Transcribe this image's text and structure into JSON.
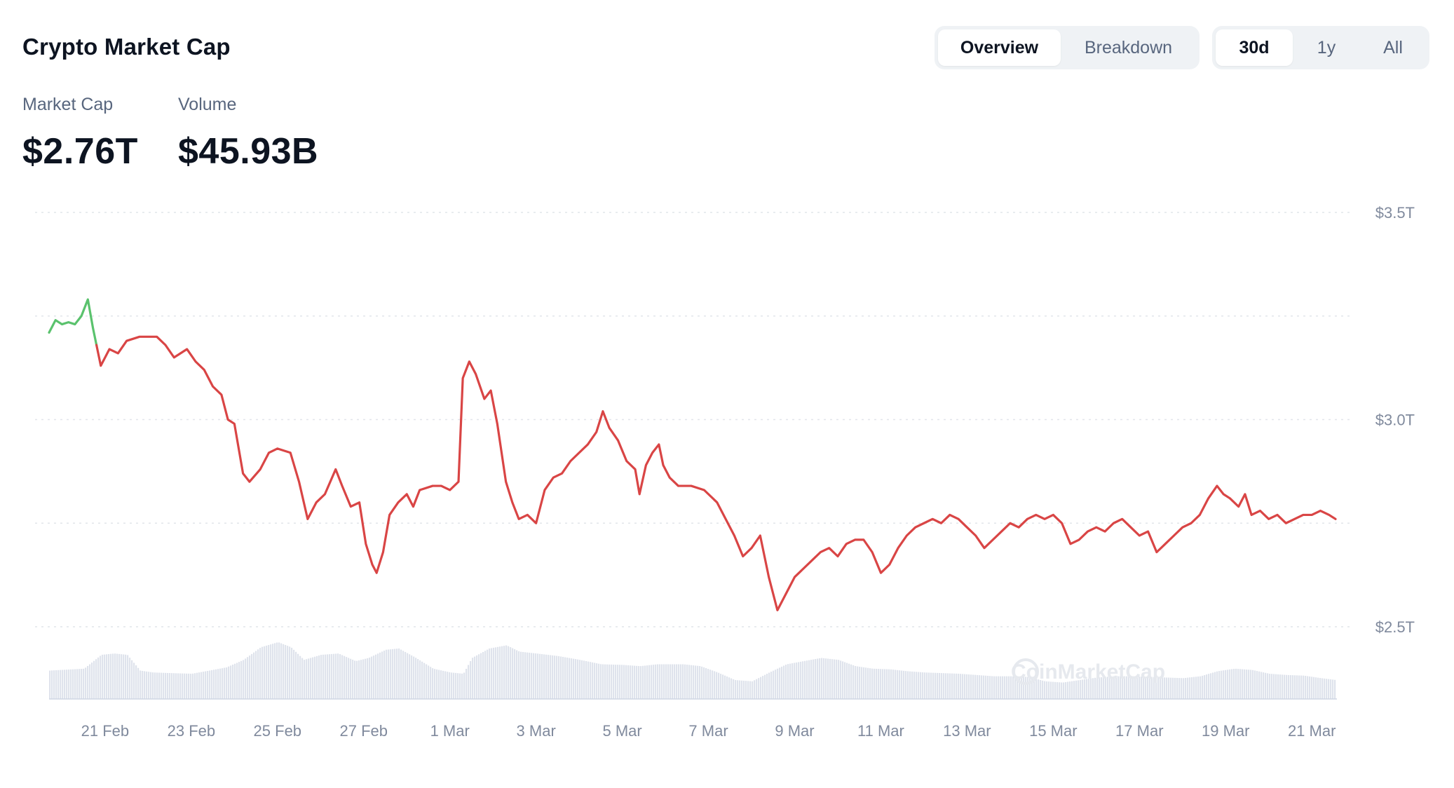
{
  "header": {
    "title": "Crypto Market Cap",
    "view_tabs": [
      {
        "label": "Overview",
        "active": true
      },
      {
        "label": "Breakdown",
        "active": false
      }
    ],
    "range_tabs": [
      {
        "label": "30d",
        "active": true
      },
      {
        "label": "1y",
        "active": false
      },
      {
        "label": "All",
        "active": false
      }
    ]
  },
  "stats": {
    "market_cap_label": "Market Cap",
    "market_cap_value": "$2.76T",
    "volume_label": "Volume",
    "volume_value": "$45.93B"
  },
  "watermark": "CoinMarketCap",
  "colors": {
    "up": "#5ac26d",
    "down": "#d94545",
    "volume": "#dfe3ec",
    "grid": "#e1e5ea"
  },
  "chart_data": {
    "type": "line",
    "ylim": [
      2.5,
      3.5
    ],
    "yticks": [
      {
        "value": 3.5,
        "label": "$3.5T"
      },
      {
        "value": 3.0,
        "label": "$3.0T"
      },
      {
        "value": 2.5,
        "label": "$2.5T"
      }
    ],
    "ygrid_values": [
      3.5,
      3.25,
      3.0,
      2.75,
      2.5
    ],
    "xticks": [
      {
        "day": 1.0,
        "label": "21 Feb"
      },
      {
        "day": 3.0,
        "label": "23 Feb"
      },
      {
        "day": 5.0,
        "label": "25 Feb"
      },
      {
        "day": 7.0,
        "label": "27 Feb"
      },
      {
        "day": 9.0,
        "label": "1 Mar"
      },
      {
        "day": 11.0,
        "label": "3 Mar"
      },
      {
        "day": 13.0,
        "label": "5 Mar"
      },
      {
        "day": 15.0,
        "label": "7 Mar"
      },
      {
        "day": 17.0,
        "label": "9 Mar"
      },
      {
        "day": 19.0,
        "label": "11 Mar"
      },
      {
        "day": 21.0,
        "label": "13 Mar"
      },
      {
        "day": 23.0,
        "label": "15 Mar"
      },
      {
        "day": 25.0,
        "label": "17 Mar"
      },
      {
        "day": 27.0,
        "label": "19 Mar"
      },
      {
        "day": 29.0,
        "label": "21 Mar"
      }
    ],
    "series": [
      {
        "name": "",
        "points": [
          [
            -0.3,
            3.21
          ],
          [
            -0.15,
            3.24
          ],
          [
            0.0,
            3.23
          ],
          [
            0.15,
            3.235
          ],
          [
            0.3,
            3.23
          ],
          [
            0.45,
            3.25
          ],
          [
            0.6,
            3.29
          ],
          [
            0.72,
            3.22
          ],
          [
            0.8,
            3.18
          ],
          [
            0.9,
            3.13
          ],
          [
            1.1,
            3.17
          ],
          [
            1.3,
            3.16
          ],
          [
            1.5,
            3.19
          ],
          [
            1.8,
            3.2
          ],
          [
            2.0,
            3.2
          ],
          [
            2.2,
            3.2
          ],
          [
            2.4,
            3.18
          ],
          [
            2.6,
            3.15
          ],
          [
            2.9,
            3.17
          ],
          [
            3.1,
            3.14
          ],
          [
            3.3,
            3.12
          ],
          [
            3.5,
            3.08
          ],
          [
            3.7,
            3.06
          ],
          [
            3.85,
            3.0
          ],
          [
            4.0,
            2.99
          ],
          [
            4.2,
            2.87
          ],
          [
            4.35,
            2.85
          ],
          [
            4.6,
            2.88
          ],
          [
            4.8,
            2.92
          ],
          [
            5.0,
            2.93
          ],
          [
            5.3,
            2.92
          ],
          [
            5.5,
            2.85
          ],
          [
            5.7,
            2.76
          ],
          [
            5.9,
            2.8
          ],
          [
            6.1,
            2.82
          ],
          [
            6.35,
            2.88
          ],
          [
            6.5,
            2.84
          ],
          [
            6.7,
            2.79
          ],
          [
            6.9,
            2.8
          ],
          [
            7.05,
            2.7
          ],
          [
            7.2,
            2.65
          ],
          [
            7.3,
            2.63
          ],
          [
            7.45,
            2.68
          ],
          [
            7.6,
            2.77
          ],
          [
            7.8,
            2.8
          ],
          [
            8.0,
            2.82
          ],
          [
            8.15,
            2.79
          ],
          [
            8.3,
            2.83
          ],
          [
            8.6,
            2.84
          ],
          [
            8.8,
            2.84
          ],
          [
            9.0,
            2.83
          ],
          [
            9.2,
            2.85
          ],
          [
            9.3,
            3.1
          ],
          [
            9.45,
            3.14
          ],
          [
            9.6,
            3.11
          ],
          [
            9.8,
            3.05
          ],
          [
            9.95,
            3.07
          ],
          [
            10.1,
            2.99
          ],
          [
            10.3,
            2.85
          ],
          [
            10.45,
            2.8
          ],
          [
            10.6,
            2.76
          ],
          [
            10.8,
            2.77
          ],
          [
            11.0,
            2.75
          ],
          [
            11.2,
            2.83
          ],
          [
            11.4,
            2.86
          ],
          [
            11.6,
            2.87
          ],
          [
            11.8,
            2.9
          ],
          [
            12.0,
            2.92
          ],
          [
            12.2,
            2.94
          ],
          [
            12.4,
            2.97
          ],
          [
            12.55,
            3.02
          ],
          [
            12.7,
            2.98
          ],
          [
            12.9,
            2.95
          ],
          [
            13.1,
            2.9
          ],
          [
            13.3,
            2.88
          ],
          [
            13.4,
            2.82
          ],
          [
            13.55,
            2.89
          ],
          [
            13.7,
            2.92
          ],
          [
            13.85,
            2.94
          ],
          [
            13.95,
            2.89
          ],
          [
            14.1,
            2.86
          ],
          [
            14.3,
            2.84
          ],
          [
            14.6,
            2.84
          ],
          [
            14.9,
            2.83
          ],
          [
            15.2,
            2.8
          ],
          [
            15.4,
            2.76
          ],
          [
            15.6,
            2.72
          ],
          [
            15.8,
            2.67
          ],
          [
            16.0,
            2.69
          ],
          [
            16.2,
            2.72
          ],
          [
            16.4,
            2.62
          ],
          [
            16.6,
            2.54
          ],
          [
            16.8,
            2.58
          ],
          [
            17.0,
            2.62
          ],
          [
            17.2,
            2.64
          ],
          [
            17.4,
            2.66
          ],
          [
            17.6,
            2.68
          ],
          [
            17.8,
            2.69
          ],
          [
            18.0,
            2.67
          ],
          [
            18.2,
            2.7
          ],
          [
            18.4,
            2.71
          ],
          [
            18.6,
            2.71
          ],
          [
            18.8,
            2.68
          ],
          [
            19.0,
            2.63
          ],
          [
            19.2,
            2.65
          ],
          [
            19.4,
            2.69
          ],
          [
            19.6,
            2.72
          ],
          [
            19.8,
            2.74
          ],
          [
            20.0,
            2.75
          ],
          [
            20.2,
            2.76
          ],
          [
            20.4,
            2.75
          ],
          [
            20.6,
            2.77
          ],
          [
            20.8,
            2.76
          ],
          [
            21.0,
            2.74
          ],
          [
            21.2,
            2.72
          ],
          [
            21.4,
            2.69
          ],
          [
            21.6,
            2.71
          ],
          [
            21.8,
            2.73
          ],
          [
            22.0,
            2.75
          ],
          [
            22.2,
            2.74
          ],
          [
            22.4,
            2.76
          ],
          [
            22.6,
            2.77
          ],
          [
            22.8,
            2.76
          ],
          [
            23.0,
            2.77
          ],
          [
            23.2,
            2.75
          ],
          [
            23.4,
            2.7
          ],
          [
            23.6,
            2.71
          ],
          [
            23.8,
            2.73
          ],
          [
            24.0,
            2.74
          ],
          [
            24.2,
            2.73
          ],
          [
            24.4,
            2.75
          ],
          [
            24.6,
            2.76
          ],
          [
            24.8,
            2.74
          ],
          [
            25.0,
            2.72
          ],
          [
            25.2,
            2.73
          ],
          [
            25.4,
            2.68
          ],
          [
            25.6,
            2.7
          ],
          [
            25.8,
            2.72
          ],
          [
            26.0,
            2.74
          ],
          [
            26.2,
            2.75
          ],
          [
            26.4,
            2.77
          ],
          [
            26.6,
            2.81
          ],
          [
            26.8,
            2.84
          ],
          [
            26.95,
            2.82
          ],
          [
            27.1,
            2.81
          ],
          [
            27.3,
            2.79
          ],
          [
            27.45,
            2.82
          ],
          [
            27.6,
            2.77
          ],
          [
            27.8,
            2.78
          ],
          [
            28.0,
            2.76
          ],
          [
            28.2,
            2.77
          ],
          [
            28.4,
            2.75
          ],
          [
            28.6,
            2.76
          ],
          [
            28.8,
            2.77
          ],
          [
            29.0,
            2.77
          ],
          [
            29.2,
            2.78
          ],
          [
            29.4,
            2.77
          ],
          [
            29.55,
            2.76
          ]
        ]
      }
    ],
    "volume_series": {
      "name": "",
      "points": [
        [
          -0.3,
          0.45
        ],
        [
          0.5,
          0.48
        ],
        [
          0.9,
          0.7
        ],
        [
          1.2,
          0.72
        ],
        [
          1.5,
          0.7
        ],
        [
          1.8,
          0.45
        ],
        [
          2.1,
          0.42
        ],
        [
          2.5,
          0.41
        ],
        [
          3.0,
          0.4
        ],
        [
          3.4,
          0.45
        ],
        [
          3.8,
          0.5
        ],
        [
          4.2,
          0.62
        ],
        [
          4.6,
          0.82
        ],
        [
          5.0,
          0.9
        ],
        [
          5.3,
          0.82
        ],
        [
          5.6,
          0.62
        ],
        [
          6.0,
          0.7
        ],
        [
          6.4,
          0.72
        ],
        [
          6.8,
          0.6
        ],
        [
          7.1,
          0.65
        ],
        [
          7.5,
          0.78
        ],
        [
          7.8,
          0.8
        ],
        [
          8.2,
          0.65
        ],
        [
          8.6,
          0.48
        ],
        [
          9.0,
          0.42
        ],
        [
          9.3,
          0.4
        ],
        [
          9.5,
          0.65
        ],
        [
          9.9,
          0.8
        ],
        [
          10.3,
          0.85
        ],
        [
          10.6,
          0.75
        ],
        [
          11.0,
          0.72
        ],
        [
          11.5,
          0.68
        ],
        [
          12.0,
          0.62
        ],
        [
          12.5,
          0.55
        ],
        [
          13.0,
          0.54
        ],
        [
          13.4,
          0.52
        ],
        [
          13.8,
          0.55
        ],
        [
          14.4,
          0.55
        ],
        [
          14.8,
          0.52
        ],
        [
          15.2,
          0.42
        ],
        [
          15.6,
          0.3
        ],
        [
          16.0,
          0.28
        ],
        [
          16.4,
          0.42
        ],
        [
          16.8,
          0.55
        ],
        [
          17.2,
          0.6
        ],
        [
          17.6,
          0.65
        ],
        [
          18.0,
          0.62
        ],
        [
          18.4,
          0.52
        ],
        [
          18.8,
          0.48
        ],
        [
          19.2,
          0.47
        ],
        [
          19.6,
          0.44
        ],
        [
          20.0,
          0.42
        ],
        [
          20.4,
          0.41
        ],
        [
          20.8,
          0.4
        ],
        [
          21.2,
          0.38
        ],
        [
          21.6,
          0.36
        ],
        [
          22.0,
          0.36
        ],
        [
          22.4,
          0.35
        ],
        [
          22.8,
          0.28
        ],
        [
          23.2,
          0.26
        ],
        [
          23.6,
          0.3
        ],
        [
          24.0,
          0.34
        ],
        [
          24.4,
          0.36
        ],
        [
          24.8,
          0.36
        ],
        [
          25.2,
          0.35
        ],
        [
          25.6,
          0.34
        ],
        [
          26.0,
          0.33
        ],
        [
          26.4,
          0.36
        ],
        [
          26.8,
          0.44
        ],
        [
          27.2,
          0.48
        ],
        [
          27.6,
          0.46
        ],
        [
          28.0,
          0.4
        ],
        [
          28.4,
          0.38
        ],
        [
          28.8,
          0.37
        ],
        [
          29.2,
          0.33
        ],
        [
          29.55,
          0.3
        ]
      ]
    }
  }
}
